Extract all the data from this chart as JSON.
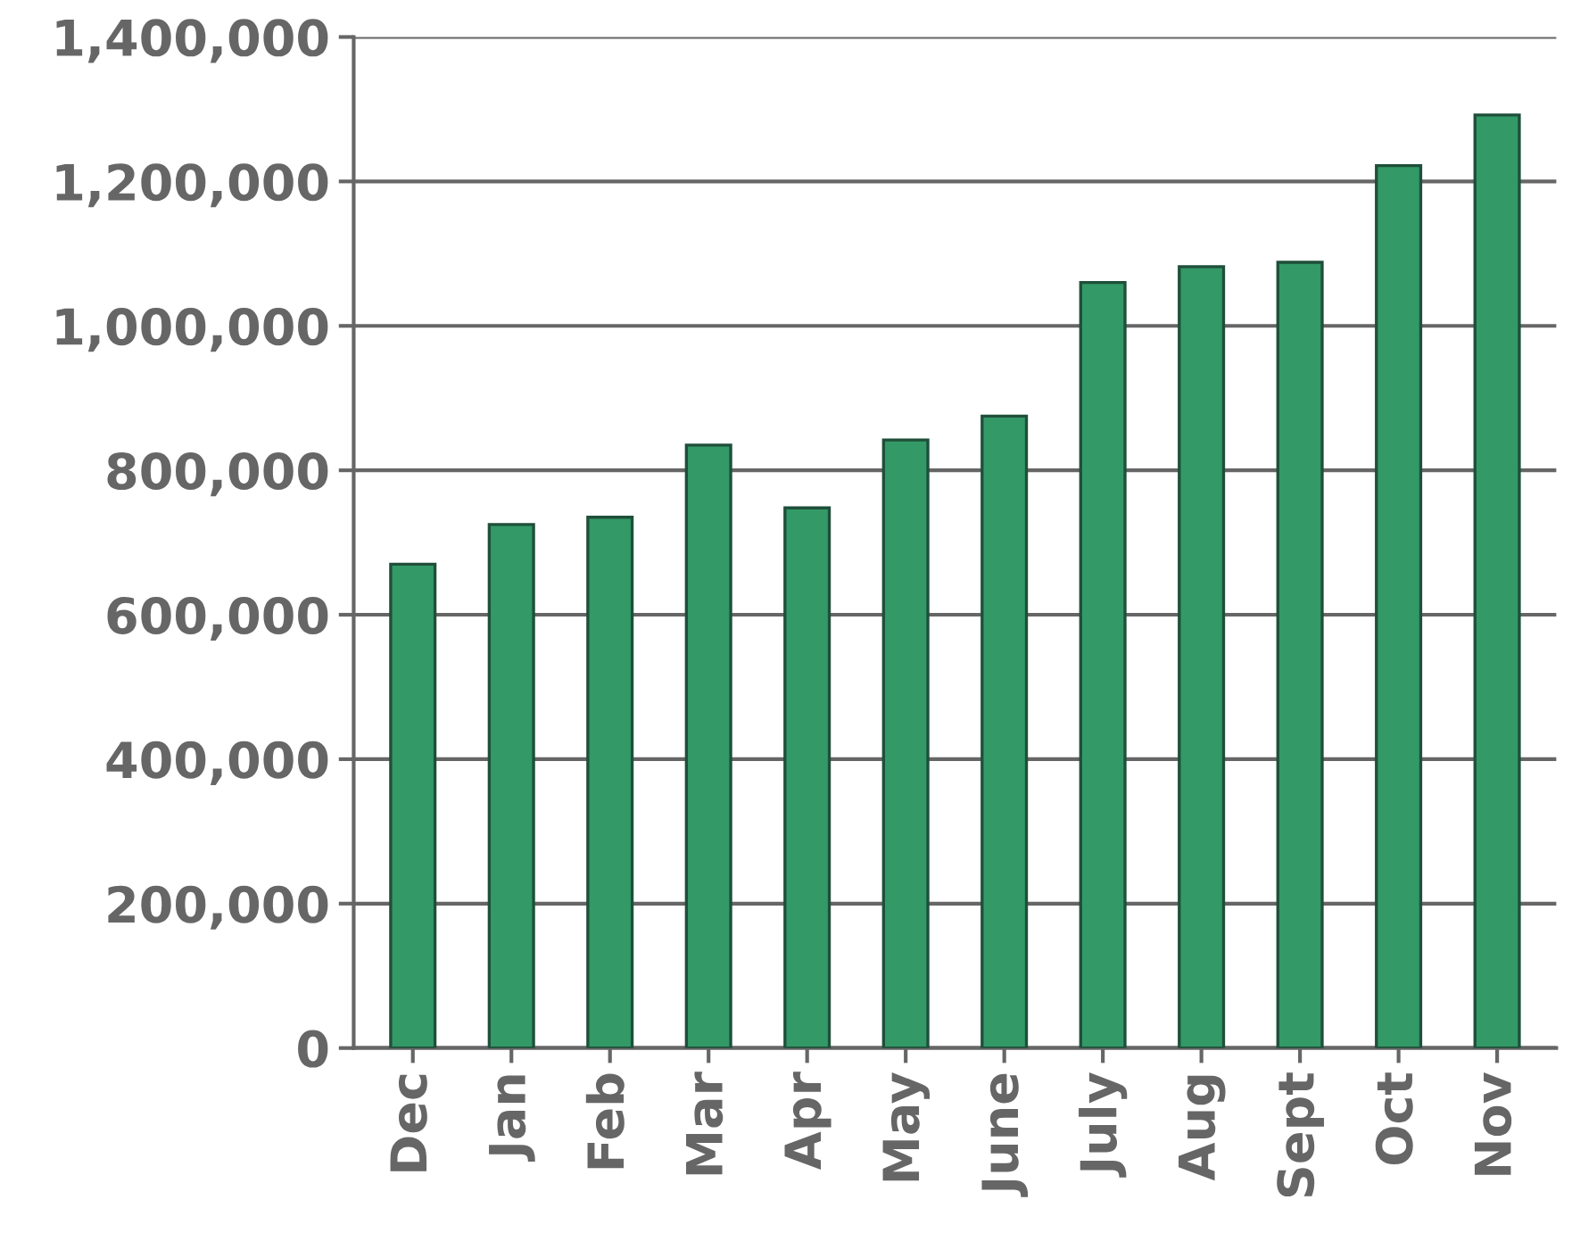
{
  "chart_data": {
    "type": "bar",
    "categories": [
      "Dec",
      "Jan",
      "Feb",
      "Mar",
      "Apr",
      "May",
      "June",
      "July",
      "Aug",
      "Sept",
      "Oct",
      "Nov"
    ],
    "values": [
      670000,
      725000,
      735000,
      835000,
      748000,
      842000,
      875000,
      1060000,
      1082000,
      1088000,
      1222000,
      1292000
    ],
    "color": "#339966",
    "ylim": [
      0,
      1400000
    ],
    "yticks": [
      {
        "value": 0,
        "label": "0"
      },
      {
        "value": 200000,
        "label": "200,000"
      },
      {
        "value": 400000,
        "label": "400,000"
      },
      {
        "value": 600000,
        "label": "600,000"
      },
      {
        "value": 800000,
        "label": "800,000"
      },
      {
        "value": 1000000,
        "label": "1,000,000"
      },
      {
        "value": 1200000,
        "label": "1,200,000"
      },
      {
        "value": 1400000,
        "label": "1,400,000"
      }
    ],
    "grid": "y",
    "legend": false
  }
}
